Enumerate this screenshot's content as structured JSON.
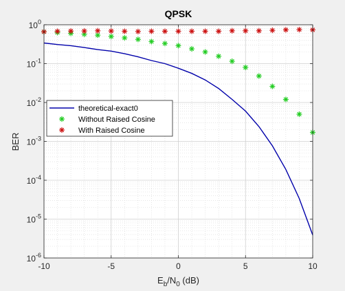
{
  "chart_data": {
    "type": "scatter",
    "title": "QPSK",
    "xlabel": {
      "main": "E",
      "sub1": "b",
      "mid": "/N",
      "sub2": "0",
      "tail": " (dB)"
    },
    "ylabel": "BER",
    "xlim": [
      -10,
      10
    ],
    "ylim": [
      1e-06,
      1
    ],
    "yscale": "log",
    "grid": true,
    "minor_grid": true,
    "legend_position": "middle-left",
    "x_ticks": [
      -10,
      -5,
      0,
      5,
      10
    ],
    "x_tick_labels": [
      "-10",
      "-5",
      "0",
      "5",
      "10"
    ],
    "y_tick_exponents": [
      0,
      -1,
      -2,
      -3,
      -4,
      -5,
      -6
    ],
    "y_tick_base": "10",
    "series": [
      {
        "name": "theoretical-exact0",
        "style": "line",
        "color": "#0000aa",
        "x": [
          -10,
          -9,
          -8,
          -7,
          -6,
          -5,
          -4,
          -3,
          -2,
          -1,
          0,
          1,
          2,
          3,
          4,
          5,
          6,
          7,
          8,
          9,
          10
        ],
        "y": [
          0.34,
          0.31,
          0.29,
          0.26,
          0.23,
          0.21,
          0.18,
          0.15,
          0.12,
          0.1,
          0.076,
          0.056,
          0.038,
          0.023,
          0.012,
          0.006,
          0.0024,
          0.00077,
          0.00019,
          3.4e-05,
          3.9e-06
        ]
      },
      {
        "name": "Without Raised Cosine",
        "style": "marker",
        "color": "#22cc22",
        "x": [
          -10,
          -9,
          -8,
          -7,
          -6,
          -5,
          -4,
          -3,
          -2,
          -1,
          0,
          1,
          2,
          3,
          4,
          5,
          6,
          7,
          8,
          9,
          10
        ],
        "y": [
          0.66,
          0.63,
          0.6,
          0.57,
          0.54,
          0.5,
          0.46,
          0.42,
          0.37,
          0.33,
          0.29,
          0.24,
          0.2,
          0.155,
          0.115,
          0.08,
          0.048,
          0.026,
          0.012,
          0.005,
          0.0017
        ]
      },
      {
        "name": "With Raised Cosine",
        "style": "marker",
        "color": "#cc1111",
        "x": [
          -10,
          -9,
          -8,
          -7,
          -6,
          -5,
          -4,
          -3,
          -2,
          -1,
          0,
          1,
          2,
          3,
          4,
          5,
          6,
          7,
          8,
          9,
          10
        ],
        "y": [
          0.66,
          0.68,
          0.69,
          0.69,
          0.7,
          0.69,
          0.68,
          0.67,
          0.68,
          0.68,
          0.68,
          0.68,
          0.68,
          0.68,
          0.7,
          0.7,
          0.7,
          0.72,
          0.74,
          0.75,
          0.74
        ]
      }
    ]
  }
}
